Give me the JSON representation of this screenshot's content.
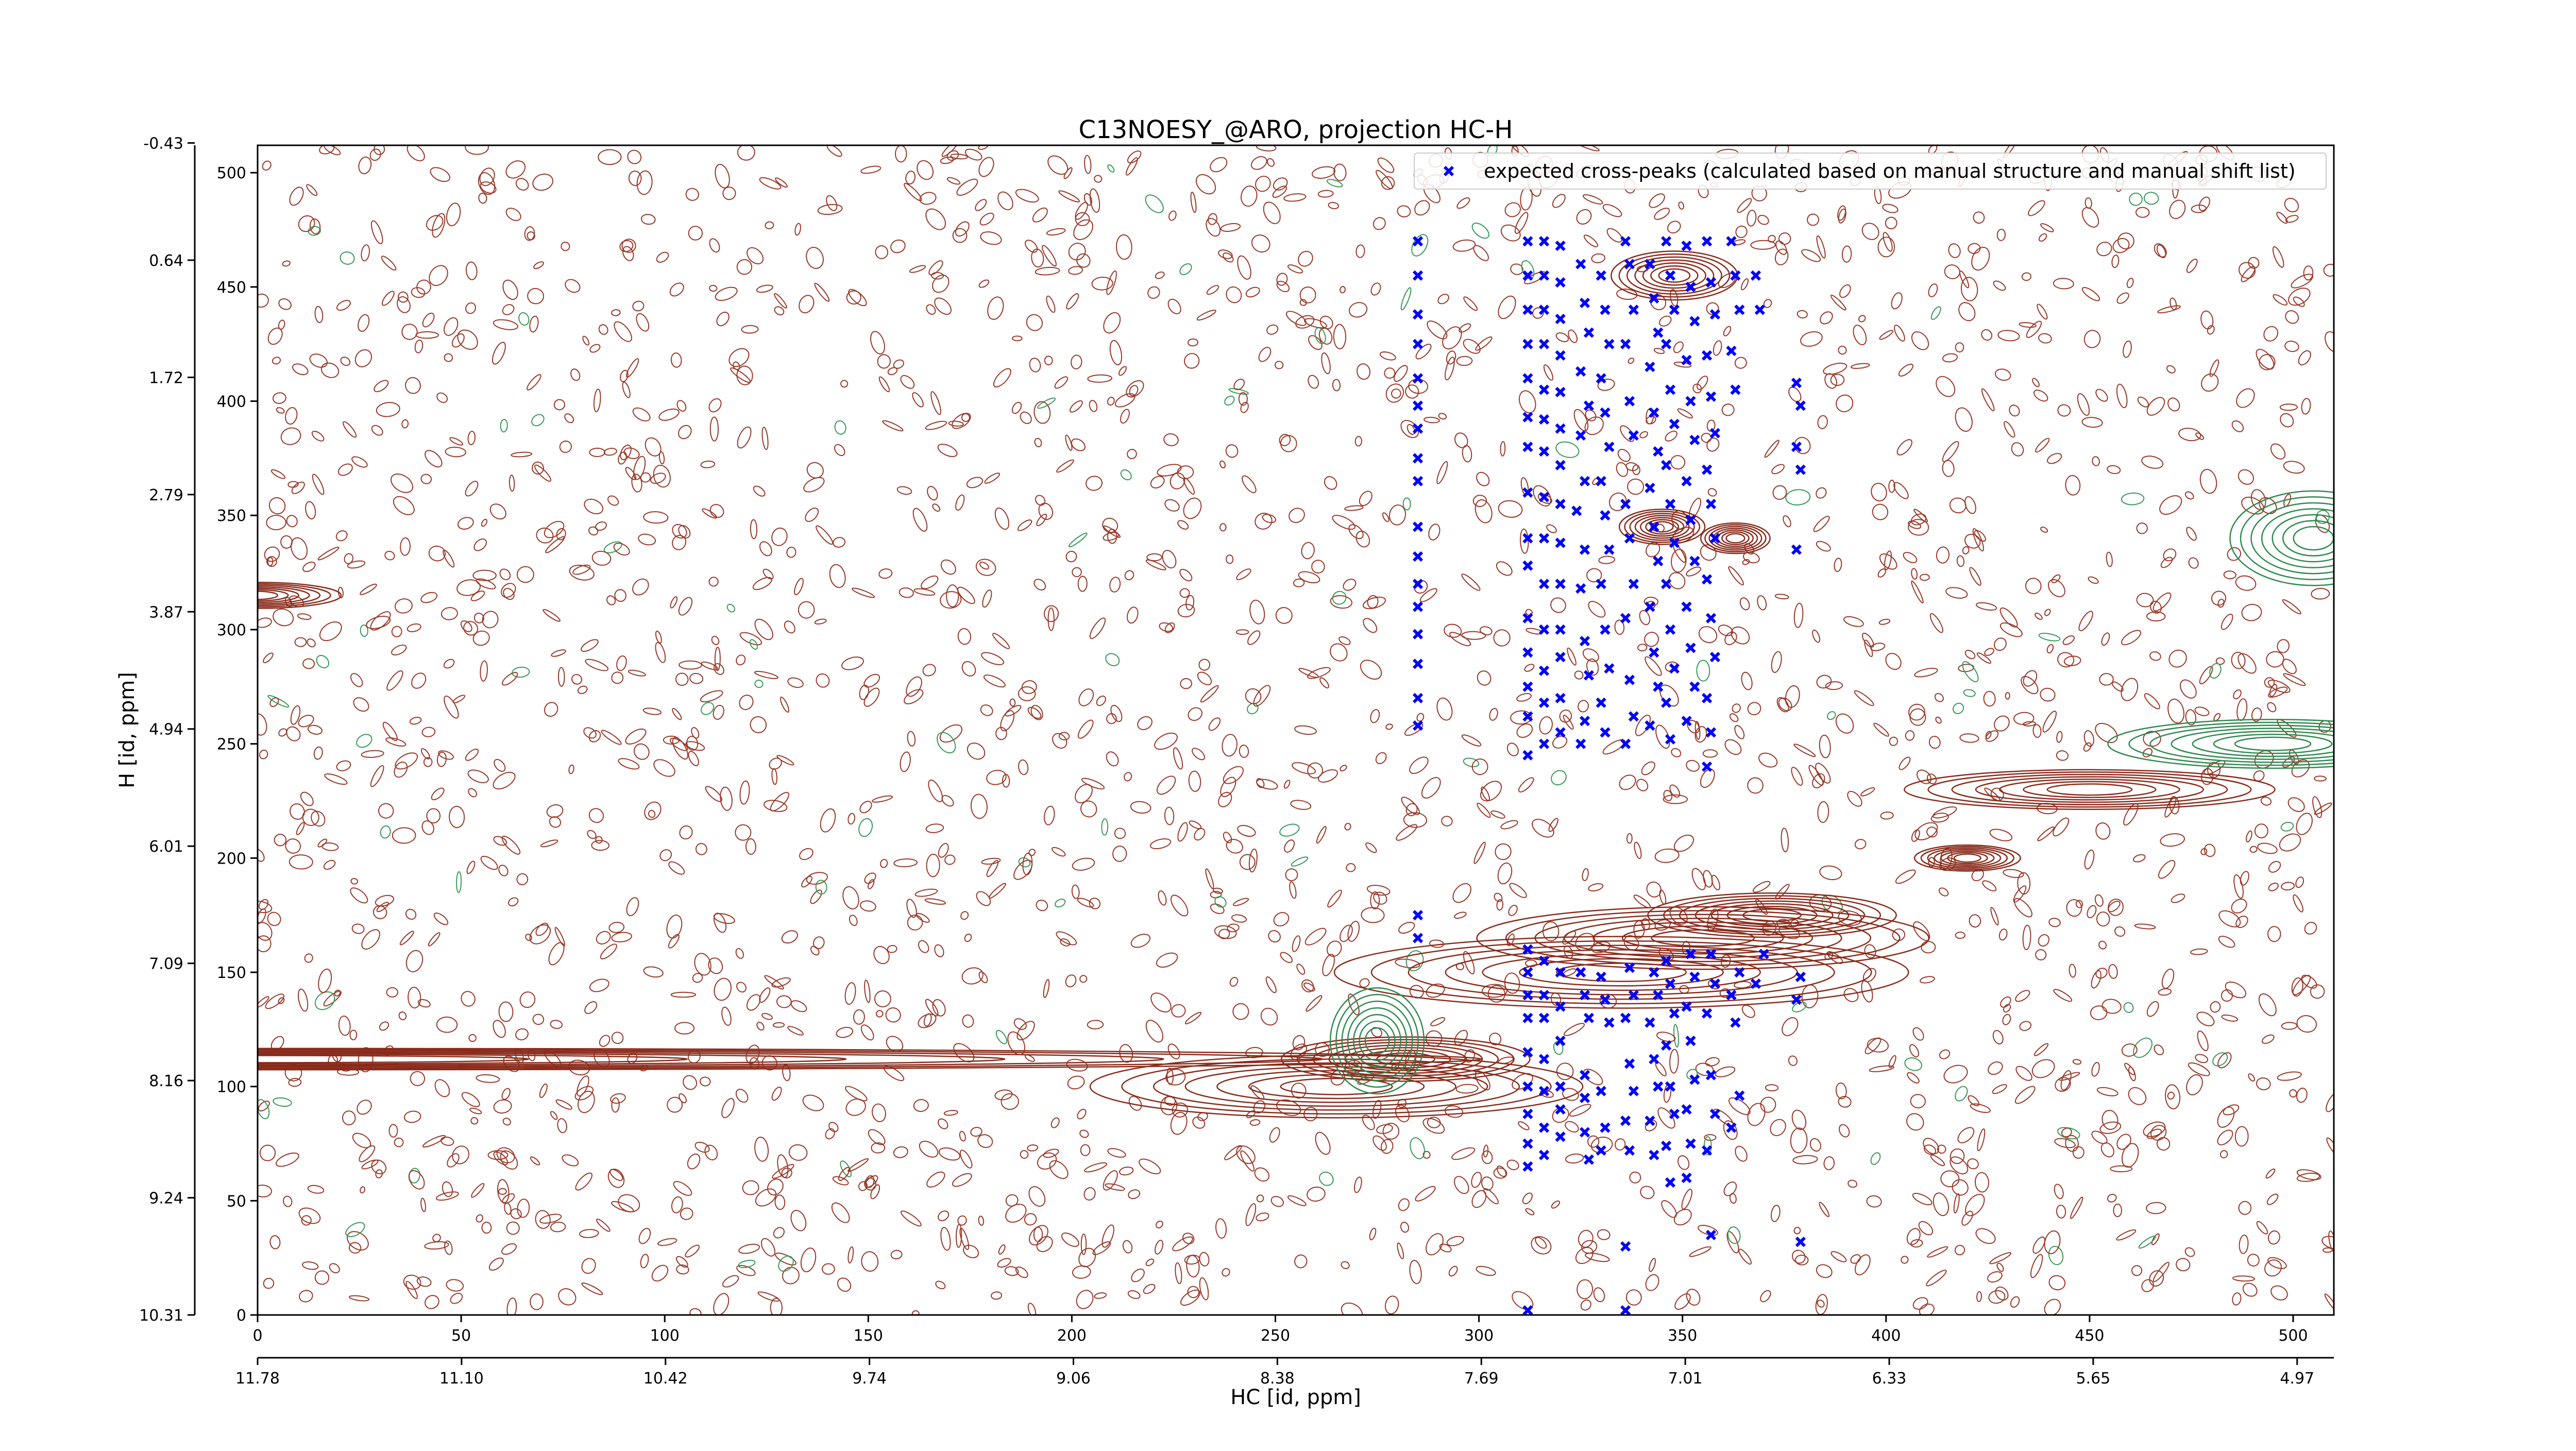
{
  "chart_data": {
    "type": "scatter",
    "title": "C13NOESY_@ARO, projection HC-H",
    "xlabel": "HC [id, ppm]",
    "ylabel": "H [id, ppm]",
    "xlim": [
      0,
      510
    ],
    "ylim": [
      0,
      512
    ],
    "x_ticks": [
      0,
      50,
      100,
      150,
      200,
      250,
      300,
      350,
      400,
      450,
      500
    ],
    "y_ticks": [
      0,
      50,
      100,
      150,
      200,
      250,
      300,
      350,
      400,
      450,
      500
    ],
    "x_ppm_ticks": [
      "11.78",
      "11.10",
      "10.42",
      "9.74",
      "9.06",
      "8.38",
      "7.69",
      "7.01",
      "6.33",
      "5.65",
      "4.97"
    ],
    "y_ppm_ticks": [
      "10.31",
      "9.24",
      "8.16",
      "7.09",
      "6.01",
      "4.94",
      "3.87",
      "2.79",
      "1.72",
      "0.64",
      "-0.43"
    ],
    "grid": false,
    "legend_position": "top-right",
    "series": [
      {
        "name": "expected cross-peaks (calculated based on manual structure and manual shift list)",
        "color": "#0000ff",
        "marker": "x",
        "points": [
          [
            285,
            470
          ],
          [
            285,
            455
          ],
          [
            285,
            438
          ],
          [
            285,
            425
          ],
          [
            285,
            410
          ],
          [
            285,
            398
          ],
          [
            285,
            388
          ],
          [
            285,
            375
          ],
          [
            285,
            365
          ],
          [
            285,
            345
          ],
          [
            285,
            332
          ],
          [
            285,
            320
          ],
          [
            285,
            310
          ],
          [
            285,
            298
          ],
          [
            285,
            285
          ],
          [
            285,
            270
          ],
          [
            285,
            258
          ],
          [
            285,
            175
          ],
          [
            285,
            165
          ],
          [
            312,
            470
          ],
          [
            312,
            455
          ],
          [
            312,
            440
          ],
          [
            312,
            425
          ],
          [
            312,
            410
          ],
          [
            312,
            393
          ],
          [
            312,
            380
          ],
          [
            312,
            360
          ],
          [
            312,
            340
          ],
          [
            312,
            328
          ],
          [
            312,
            305
          ],
          [
            312,
            290
          ],
          [
            312,
            275
          ],
          [
            312,
            262
          ],
          [
            312,
            245
          ],
          [
            312,
            160
          ],
          [
            312,
            150
          ],
          [
            312,
            140
          ],
          [
            312,
            130
          ],
          [
            312,
            115
          ],
          [
            312,
            100
          ],
          [
            312,
            88
          ],
          [
            312,
            75
          ],
          [
            312,
            65
          ],
          [
            312,
            2
          ],
          [
            316,
            470
          ],
          [
            316,
            455
          ],
          [
            316,
            440
          ],
          [
            316,
            425
          ],
          [
            316,
            405
          ],
          [
            316,
            392
          ],
          [
            316,
            378
          ],
          [
            316,
            358
          ],
          [
            316,
            340
          ],
          [
            316,
            320
          ],
          [
            316,
            300
          ],
          [
            316,
            282
          ],
          [
            316,
            268
          ],
          [
            316,
            250
          ],
          [
            316,
            155
          ],
          [
            316,
            140
          ],
          [
            316,
            130
          ],
          [
            316,
            112
          ],
          [
            316,
            98
          ],
          [
            316,
            82
          ],
          [
            316,
            70
          ],
          [
            320,
            468
          ],
          [
            320,
            452
          ],
          [
            320,
            436
          ],
          [
            320,
            420
          ],
          [
            320,
            404
          ],
          [
            320,
            388
          ],
          [
            320,
            372
          ],
          [
            320,
            355
          ],
          [
            320,
            338
          ],
          [
            320,
            320
          ],
          [
            320,
            300
          ],
          [
            320,
            288
          ],
          [
            320,
            270
          ],
          [
            320,
            255
          ],
          [
            320,
            150
          ],
          [
            320,
            135
          ],
          [
            320,
            120
          ],
          [
            320,
            100
          ],
          [
            320,
            90
          ],
          [
            320,
            78
          ],
          [
            325,
            460
          ],
          [
            326,
            443
          ],
          [
            327,
            430
          ],
          [
            325,
            413
          ],
          [
            327,
            398
          ],
          [
            325,
            385
          ],
          [
            326,
            365
          ],
          [
            324,
            352
          ],
          [
            326,
            335
          ],
          [
            325,
            318
          ],
          [
            326,
            295
          ],
          [
            327,
            280
          ],
          [
            326,
            260
          ],
          [
            325,
            250
          ],
          [
            325,
            150
          ],
          [
            326,
            140
          ],
          [
            327,
            130
          ],
          [
            326,
            105
          ],
          [
            326,
            95
          ],
          [
            326,
            80
          ],
          [
            327,
            68
          ],
          [
            330,
            455
          ],
          [
            331,
            440
          ],
          [
            332,
            425
          ],
          [
            330,
            410
          ],
          [
            331,
            395
          ],
          [
            332,
            380
          ],
          [
            330,
            365
          ],
          [
            331,
            350
          ],
          [
            332,
            335
          ],
          [
            330,
            320
          ],
          [
            331,
            300
          ],
          [
            332,
            283
          ],
          [
            330,
            268
          ],
          [
            331,
            255
          ],
          [
            330,
            148
          ],
          [
            331,
            138
          ],
          [
            332,
            128
          ],
          [
            330,
            98
          ],
          [
            331,
            82
          ],
          [
            330,
            72
          ],
          [
            336,
            470
          ],
          [
            337,
            460
          ],
          [
            338,
            440
          ],
          [
            336,
            425
          ],
          [
            337,
            400
          ],
          [
            338,
            385
          ],
          [
            336,
            355
          ],
          [
            337,
            340
          ],
          [
            338,
            320
          ],
          [
            336,
            305
          ],
          [
            337,
            278
          ],
          [
            338,
            262
          ],
          [
            336,
            250
          ],
          [
            337,
            152
          ],
          [
            338,
            140
          ],
          [
            336,
            130
          ],
          [
            337,
            110
          ],
          [
            338,
            98
          ],
          [
            336,
            85
          ],
          [
            337,
            72
          ],
          [
            336,
            30
          ],
          [
            336,
            2
          ],
          [
            342,
            460
          ],
          [
            343,
            445
          ],
          [
            344,
            430
          ],
          [
            342,
            415
          ],
          [
            343,
            395
          ],
          [
            344,
            378
          ],
          [
            342,
            362
          ],
          [
            343,
            345
          ],
          [
            344,
            330
          ],
          [
            342,
            310
          ],
          [
            343,
            290
          ],
          [
            344,
            275
          ],
          [
            342,
            258
          ],
          [
            343,
            150
          ],
          [
            344,
            140
          ],
          [
            342,
            128
          ],
          [
            343,
            112
          ],
          [
            344,
            100
          ],
          [
            342,
            85
          ],
          [
            343,
            70
          ],
          [
            346,
            470
          ],
          [
            347,
            455
          ],
          [
            348,
            440
          ],
          [
            346,
            425
          ],
          [
            347,
            405
          ],
          [
            348,
            390
          ],
          [
            346,
            372
          ],
          [
            347,
            355
          ],
          [
            348,
            338
          ],
          [
            346,
            320
          ],
          [
            347,
            300
          ],
          [
            348,
            283
          ],
          [
            346,
            268
          ],
          [
            347,
            252
          ],
          [
            346,
            155
          ],
          [
            347,
            145
          ],
          [
            348,
            132
          ],
          [
            346,
            118
          ],
          [
            347,
            100
          ],
          [
            348,
            88
          ],
          [
            346,
            74
          ],
          [
            347,
            58
          ],
          [
            351,
            468
          ],
          [
            352,
            450
          ],
          [
            353,
            435
          ],
          [
            351,
            418
          ],
          [
            352,
            400
          ],
          [
            353,
            383
          ],
          [
            351,
            365
          ],
          [
            352,
            348
          ],
          [
            353,
            330
          ],
          [
            351,
            310
          ],
          [
            352,
            292
          ],
          [
            353,
            275
          ],
          [
            351,
            260
          ],
          [
            352,
            158
          ],
          [
            353,
            148
          ],
          [
            351,
            135
          ],
          [
            352,
            120
          ],
          [
            353,
            103
          ],
          [
            351,
            90
          ],
          [
            352,
            75
          ],
          [
            351,
            60
          ],
          [
            356,
            470
          ],
          [
            357,
            452
          ],
          [
            358,
            438
          ],
          [
            356,
            420
          ],
          [
            357,
            402
          ],
          [
            358,
            386
          ],
          [
            356,
            370
          ],
          [
            357,
            355
          ],
          [
            358,
            340
          ],
          [
            356,
            322
          ],
          [
            357,
            305
          ],
          [
            358,
            288
          ],
          [
            356,
            270
          ],
          [
            357,
            255
          ],
          [
            356,
            240
          ],
          [
            357,
            158
          ],
          [
            358,
            145
          ],
          [
            356,
            132
          ],
          [
            357,
            105
          ],
          [
            358,
            88
          ],
          [
            356,
            72
          ],
          [
            357,
            35
          ],
          [
            362,
            470
          ],
          [
            363,
            455
          ],
          [
            364,
            440
          ],
          [
            362,
            422
          ],
          [
            363,
            405
          ],
          [
            364,
            150
          ],
          [
            362,
            140
          ],
          [
            363,
            128
          ],
          [
            364,
            96
          ],
          [
            362,
            82
          ],
          [
            368,
            455
          ],
          [
            369,
            440
          ],
          [
            370,
            158
          ],
          [
            368,
            145
          ],
          [
            378,
            408
          ],
          [
            379,
            398
          ],
          [
            378,
            380
          ],
          [
            379,
            370
          ],
          [
            378,
            335
          ],
          [
            379,
            148
          ],
          [
            378,
            138
          ],
          [
            379,
            32
          ]
        ]
      }
    ]
  }
}
